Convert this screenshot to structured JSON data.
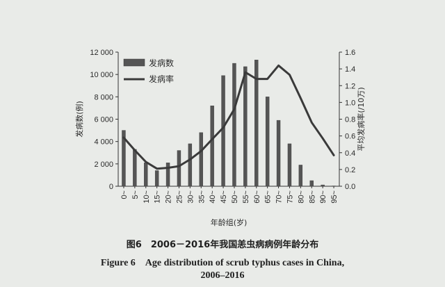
{
  "figure": {
    "caption_cn": "图6　2006－2016年我国恙虫病病例年龄分布",
    "caption_en_line1": "Figure 6　Age distribution of scrub typhus cases in China,",
    "caption_en_line2": "2006–2016"
  },
  "chart_data": {
    "type": "bar",
    "xlabel": "年龄组(岁)",
    "ylabel": "发病数(例)",
    "y2label": "平均发病率(/10万)",
    "categories": [
      "0~",
      "5~",
      "10~",
      "15~",
      "20~",
      "25~",
      "30~",
      "35~",
      "40~",
      "45~",
      "50~",
      "55~",
      "60~",
      "65~",
      "70~",
      "75~",
      "80~",
      "85~",
      "90~",
      "95~"
    ],
    "ylim": [
      0,
      12000
    ],
    "yticks": [
      0,
      2000,
      4000,
      6000,
      8000,
      10000,
      12000
    ],
    "ytick_labels": [
      "0",
      "2 000",
      "4 000",
      "6 000",
      "8 000",
      "10 000",
      "12 000"
    ],
    "y2lim": [
      0,
      1.6
    ],
    "y2ticks": [
      0,
      0.2,
      0.4,
      0.6,
      0.8,
      1.0,
      1.2,
      1.4,
      1.6
    ],
    "y2tick_labels": [
      "0.0",
      "0.2",
      "0.4",
      "0.6",
      "0.8",
      "1.0",
      "1.2",
      "1.4",
      "1.6"
    ],
    "legend_position": "top-left",
    "series": [
      {
        "name": "发病数",
        "kind": "bar",
        "axis": "left",
        "color": "#555555",
        "values": [
          5000,
          3300,
          2100,
          1400,
          2100,
          3200,
          3800,
          4800,
          7200,
          9900,
          11000,
          10700,
          11300,
          8000,
          5900,
          3800,
          1900,
          500,
          120,
          30
        ]
      },
      {
        "name": "发病率",
        "kind": "line",
        "axis": "right",
        "color": "#3a3a3a",
        "values": [
          0.58,
          0.43,
          0.29,
          0.21,
          0.22,
          0.24,
          0.32,
          0.42,
          0.56,
          0.7,
          0.92,
          1.36,
          1.28,
          1.28,
          1.44,
          1.33,
          1.05,
          0.76,
          0.57,
          0.37
        ]
      }
    ]
  }
}
